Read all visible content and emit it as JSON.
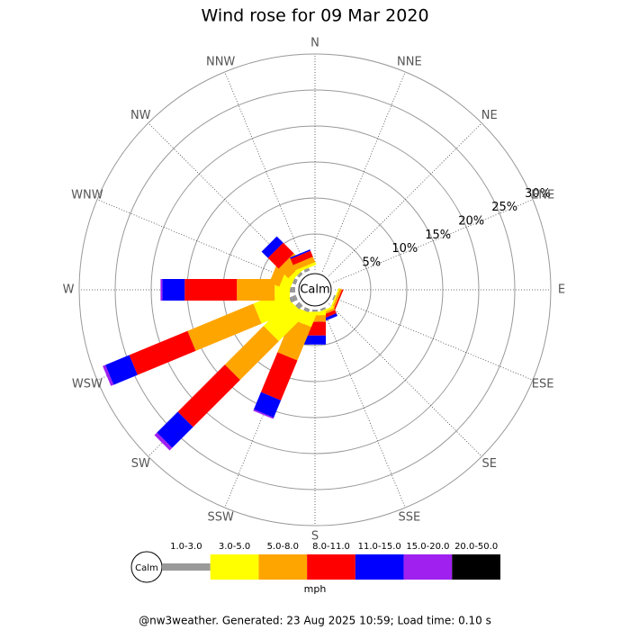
{
  "chart_data": {
    "type": "wind_rose",
    "title": "Wind rose for 09 Mar 2020",
    "directions": [
      "N",
      "NNE",
      "NE",
      "ENE",
      "E",
      "ESE",
      "SE",
      "SSE",
      "S",
      "SSW",
      "SW",
      "WSW",
      "W",
      "WNW",
      "NW",
      "NNW"
    ],
    "calm_label": "Calm",
    "rlim": [
      0,
      30
    ],
    "rticks": [
      {
        "value": 5,
        "label": "5%"
      },
      {
        "value": 10,
        "label": "10%"
      },
      {
        "value": 15,
        "label": "15%"
      },
      {
        "value": 20,
        "label": "20%"
      },
      {
        "value": 25,
        "label": "25%"
      },
      {
        "value": 30,
        "label": "30%"
      }
    ],
    "series": [
      {
        "name": "1.0-3.0",
        "color": "#999999",
        "values": [
          0,
          0,
          0,
          0,
          0,
          0.2,
          0,
          0.3,
          0.3,
          0.5,
          0.75,
          1,
          0.75,
          0.5,
          0.4,
          0.4
        ]
      },
      {
        "name": "3.0-5.0",
        "color": "#ffff00",
        "values": [
          0,
          0,
          0,
          0,
          0,
          0.2,
          0,
          0.3,
          0.5,
          1.75,
          5.1,
          4.9,
          2.1,
          1.5,
          0.6,
          0.4
        ]
      },
      {
        "name": "5.0-8.0",
        "color": "#ffa500",
        "values": [
          0,
          0,
          0,
          0,
          0,
          0.3,
          0,
          0.3,
          0.9,
          5,
          7.6,
          9.9,
          5.25,
          1.5,
          1.9,
          0.8
        ]
      },
      {
        "name": "8.0-11.0",
        "color": "#ff0000",
        "values": [
          0,
          0,
          0,
          0,
          0,
          0.2,
          0,
          0.5,
          1.9,
          6,
          9.25,
          8.75,
          7.25,
          0,
          2.1,
          0.9
        ]
      },
      {
        "name": "11.0-15.0",
        "color": "#0000ff",
        "values": [
          0,
          0,
          0,
          0,
          0,
          0,
          0,
          0.4,
          1.25,
          2.6,
          4.1,
          3.6,
          3.1,
          0,
          1.25,
          0.2
        ]
      },
      {
        "name": "15.0-20.0",
        "color": "#a020f0",
        "values": [
          0,
          0,
          0,
          0,
          0,
          0,
          0,
          0,
          0,
          0.2,
          0.5,
          0.4,
          0.25,
          0,
          0,
          0
        ]
      },
      {
        "name": "20.0-50.0",
        "color": "#000000",
        "values": [
          0,
          0,
          0,
          0,
          0,
          0,
          0,
          0,
          0,
          0,
          0,
          0,
          0,
          0,
          0,
          0
        ]
      }
    ],
    "legend_unit": "mph",
    "footer": "@nw3weather. Generated: 23 Aug 2025 10:59; Load time: 0.10 s"
  }
}
